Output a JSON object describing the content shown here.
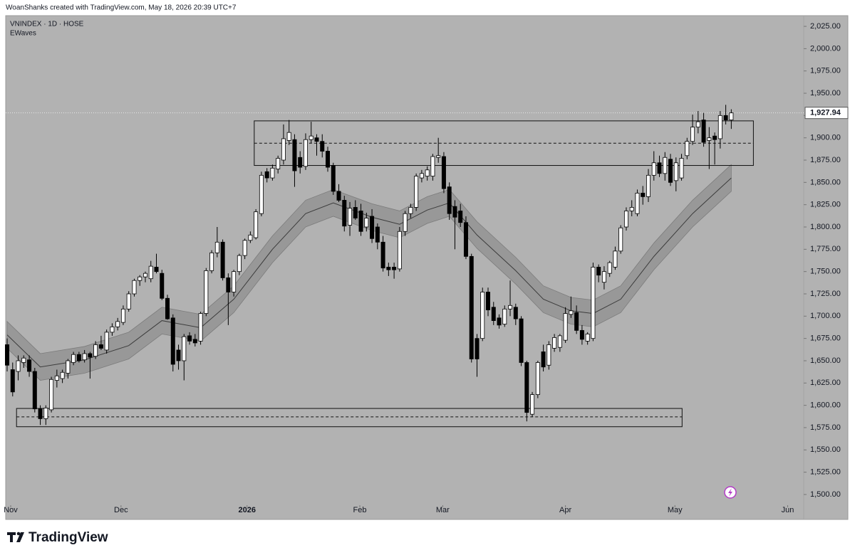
{
  "header": {
    "credit": "WoanShanks created with TradingView.com, May 18, 2026 20:39 UTC+7"
  },
  "chart_data": {
    "type": "candlestick",
    "title": "VNINDEX · 1D · HOSE",
    "indicator": "EWaves",
    "up_color": "#ffffff",
    "down_color": "#000000",
    "ylim": [
      1488,
      2037
    ],
    "yticks": [
      {
        "value": 1500,
        "label": "1,500.00"
      },
      {
        "value": 1525,
        "label": "1,525.00"
      },
      {
        "value": 1550,
        "label": "1,550.00"
      },
      {
        "value": 1575,
        "label": "1,575.00"
      },
      {
        "value": 1600,
        "label": "1,600.00"
      },
      {
        "value": 1625,
        "label": "1,625.00"
      },
      {
        "value": 1650,
        "label": "1,650.00"
      },
      {
        "value": 1675,
        "label": "1,675.00"
      },
      {
        "value": 1700,
        "label": "1,700.00"
      },
      {
        "value": 1725,
        "label": "1,725.00"
      },
      {
        "value": 1750,
        "label": "1,750.00"
      },
      {
        "value": 1775,
        "label": "1,775.00"
      },
      {
        "value": 1800,
        "label": "1,800.00"
      },
      {
        "value": 1825,
        "label": "1,825.00"
      },
      {
        "value": 1850,
        "label": "1,850.00"
      },
      {
        "value": 1875,
        "label": "1,875.00"
      },
      {
        "value": 1900,
        "label": "1,900.00"
      },
      {
        "value": 1925,
        "label": "1,925.00"
      },
      {
        "value": 1950,
        "label": "1,950.00"
      },
      {
        "value": 1975,
        "label": "1,975.00"
      },
      {
        "value": 2000,
        "label": "2,000.00"
      },
      {
        "value": 2025,
        "label": "2,025.00"
      }
    ],
    "xlim": [
      -0.26,
      144.1
    ],
    "xticks": [
      {
        "value": 0.64,
        "label": "Nov"
      },
      {
        "value": 20.6,
        "label": "Dec"
      },
      {
        "value": 43.4,
        "label": "2026"
      },
      {
        "value": 63.8,
        "label": "Feb"
      },
      {
        "value": 78.8,
        "label": "Mar"
      },
      {
        "value": 101,
        "label": "Apr"
      },
      {
        "value": 120.8,
        "label": "May"
      },
      {
        "value": 141.2,
        "label": "Jun"
      }
    ],
    "last_price": {
      "value": 1927.94,
      "label": "1,927.94"
    },
    "ohlc": [
      [
        1668,
        1675,
        1638,
        1645
      ],
      [
        1640,
        1648,
        1610,
        1615
      ],
      [
        1638,
        1656,
        1628,
        1650
      ],
      [
        1648,
        1656,
        1642,
        1653
      ],
      [
        1651,
        1656,
        1632,
        1638
      ],
      [
        1638,
        1642,
        1592,
        1596
      ],
      [
        1596,
        1600,
        1578,
        1585
      ],
      [
        1585,
        1600,
        1578,
        1597
      ],
      [
        1595,
        1632,
        1592,
        1629
      ],
      [
        1628,
        1640,
        1620,
        1633
      ],
      [
        1630,
        1640,
        1625,
        1637
      ],
      [
        1636,
        1652,
        1630,
        1650
      ],
      [
        1648,
        1660,
        1645,
        1657
      ],
      [
        1657,
        1660,
        1648,
        1650
      ],
      [
        1651,
        1662,
        1648,
        1658
      ],
      [
        1658,
        1660,
        1630,
        1654
      ],
      [
        1655,
        1672,
        1652,
        1668
      ],
      [
        1668,
        1678,
        1662,
        1664
      ],
      [
        1662,
        1685,
        1658,
        1682
      ],
      [
        1682,
        1692,
        1678,
        1688
      ],
      [
        1688,
        1698,
        1684,
        1694
      ],
      [
        1693,
        1712,
        1690,
        1708
      ],
      [
        1708,
        1728,
        1705,
        1725
      ],
      [
        1725,
        1742,
        1722,
        1740
      ],
      [
        1740,
        1746,
        1734,
        1744
      ],
      [
        1744,
        1750,
        1738,
        1748
      ],
      [
        1742,
        1762,
        1738,
        1756
      ],
      [
        1755,
        1770,
        1748,
        1750
      ],
      [
        1748,
        1752,
        1718,
        1720
      ],
      [
        1720,
        1724,
        1696,
        1697
      ],
      [
        1698,
        1702,
        1638,
        1646
      ],
      [
        1662,
        1668,
        1640,
        1650
      ],
      [
        1650,
        1680,
        1628,
        1677
      ],
      [
        1678,
        1682,
        1668,
        1672
      ],
      [
        1674,
        1680,
        1666,
        1670
      ],
      [
        1672,
        1705,
        1668,
        1703
      ],
      [
        1703,
        1754,
        1700,
        1751
      ],
      [
        1751,
        1774,
        1748,
        1771
      ],
      [
        1771,
        1800,
        1766,
        1783
      ],
      [
        1783,
        1786,
        1740,
        1743
      ],
      [
        1743,
        1748,
        1690,
        1727
      ],
      [
        1727,
        1752,
        1722,
        1750
      ],
      [
        1750,
        1770,
        1746,
        1768
      ],
      [
        1768,
        1787,
        1764,
        1785
      ],
      [
        1785,
        1795,
        1782,
        1791
      ],
      [
        1788,
        1820,
        1786,
        1817
      ],
      [
        1815,
        1862,
        1812,
        1858
      ],
      [
        1862,
        1866,
        1850,
        1855
      ],
      [
        1855,
        1870,
        1852,
        1866
      ],
      [
        1865,
        1880,
        1860,
        1877
      ],
      [
        1875,
        1915,
        1870,
        1899
      ],
      [
        1897,
        1920,
        1892,
        1906
      ],
      [
        1898,
        1904,
        1845,
        1863
      ],
      [
        1878,
        1885,
        1860,
        1867
      ],
      [
        1868,
        1905,
        1864,
        1898
      ],
      [
        1898,
        1918,
        1894,
        1902
      ],
      [
        1900,
        1904,
        1880,
        1896
      ],
      [
        1896,
        1904,
        1878,
        1885
      ],
      [
        1885,
        1890,
        1862,
        1867
      ],
      [
        1869,
        1872,
        1836,
        1840
      ],
      [
        1840,
        1848,
        1828,
        1830
      ],
      [
        1830,
        1835,
        1795,
        1801
      ],
      [
        1802,
        1828,
        1790,
        1821
      ],
      [
        1822,
        1830,
        1808,
        1810
      ],
      [
        1818,
        1826,
        1790,
        1795
      ],
      [
        1800,
        1816,
        1795,
        1810
      ],
      [
        1812,
        1820,
        1782,
        1787
      ],
      [
        1800,
        1804,
        1775,
        1783
      ],
      [
        1783,
        1790,
        1750,
        1754
      ],
      [
        1755,
        1760,
        1745,
        1752
      ],
      [
        1755,
        1760,
        1742,
        1752
      ],
      [
        1753,
        1800,
        1750,
        1795
      ],
      [
        1795,
        1818,
        1790,
        1815
      ],
      [
        1815,
        1826,
        1810,
        1822
      ],
      [
        1822,
        1860,
        1818,
        1857
      ],
      [
        1855,
        1864,
        1850,
        1860
      ],
      [
        1857,
        1868,
        1852,
        1864
      ],
      [
        1857,
        1882,
        1852,
        1879
      ],
      [
        1878,
        1900,
        1872,
        1880
      ],
      [
        1879,
        1884,
        1838,
        1843
      ],
      [
        1845,
        1850,
        1808,
        1815
      ],
      [
        1823,
        1830,
        1775,
        1811
      ],
      [
        1818,
        1826,
        1800,
        1805
      ],
      [
        1805,
        1812,
        1764,
        1767
      ],
      [
        1767,
        1770,
        1648,
        1652
      ],
      [
        1675,
        1680,
        1632,
        1652
      ],
      [
        1675,
        1732,
        1672,
        1727
      ],
      [
        1727,
        1732,
        1700,
        1707
      ],
      [
        1710,
        1716,
        1690,
        1695
      ],
      [
        1698,
        1702,
        1686,
        1690
      ],
      [
        1691,
        1712,
        1688,
        1708
      ],
      [
        1708,
        1740,
        1700,
        1712
      ],
      [
        1710,
        1714,
        1690,
        1697
      ],
      [
        1697,
        1700,
        1644,
        1648
      ],
      [
        1648,
        1650,
        1582,
        1592
      ],
      [
        1590,
        1615,
        1587,
        1612
      ],
      [
        1612,
        1650,
        1608,
        1648
      ],
      [
        1660,
        1668,
        1638,
        1643
      ],
      [
        1645,
        1672,
        1640,
        1668
      ],
      [
        1664,
        1680,
        1660,
        1676
      ],
      [
        1665,
        1680,
        1660,
        1678
      ],
      [
        1673,
        1710,
        1670,
        1703
      ],
      [
        1702,
        1722,
        1698,
        1706
      ],
      [
        1704,
        1712,
        1680,
        1684
      ],
      [
        1684,
        1690,
        1668,
        1674
      ],
      [
        1672,
        1682,
        1668,
        1680
      ],
      [
        1675,
        1760,
        1672,
        1755
      ],
      [
        1755,
        1758,
        1738,
        1746
      ],
      [
        1738,
        1756,
        1730,
        1750
      ],
      [
        1748,
        1762,
        1744,
        1760
      ],
      [
        1755,
        1778,
        1752,
        1773
      ],
      [
        1773,
        1802,
        1770,
        1799
      ],
      [
        1800,
        1822,
        1796,
        1818
      ],
      [
        1818,
        1830,
        1812,
        1822
      ],
      [
        1815,
        1842,
        1812,
        1838
      ],
      [
        1838,
        1846,
        1825,
        1834
      ],
      [
        1834,
        1865,
        1828,
        1858
      ],
      [
        1858,
        1885,
        1852,
        1872
      ],
      [
        1872,
        1880,
        1856,
        1860
      ],
      [
        1860,
        1884,
        1852,
        1878
      ],
      [
        1876,
        1882,
        1846,
        1850
      ],
      [
        1852,
        1878,
        1840,
        1872
      ],
      [
        1855,
        1882,
        1852,
        1877
      ],
      [
        1880,
        1900,
        1876,
        1896
      ],
      [
        1896,
        1926,
        1892,
        1912
      ],
      [
        1912,
        1930,
        1905,
        1918
      ],
      [
        1920,
        1928,
        1890,
        1895
      ],
      [
        1897,
        1912,
        1865,
        1900
      ],
      [
        1902,
        1906,
        1870,
        1898
      ],
      [
        1899,
        1930,
        1888,
        1925
      ],
      [
        1925,
        1937,
        1915,
        1920
      ],
      [
        1920,
        1932,
        1910,
        1927.94
      ]
    ],
    "ewaves": {
      "x": [
        0,
        6,
        14,
        22,
        28,
        35,
        41,
        48,
        54,
        59,
        66,
        71,
        76,
        80,
        85,
        92,
        97,
        102,
        106,
        111,
        117,
        124,
        131
      ],
      "mid": [
        1679,
        1643,
        1651,
        1667,
        1695,
        1687,
        1719,
        1775,
        1815,
        1827,
        1811,
        1803,
        1819,
        1827,
        1791,
        1751,
        1719,
        1706,
        1703,
        1719,
        1767,
        1815,
        1855
      ],
      "upper": [
        1694,
        1658,
        1666,
        1682,
        1710,
        1702,
        1734,
        1790,
        1830,
        1842,
        1826,
        1818,
        1834,
        1842,
        1806,
        1766,
        1734,
        1721,
        1718,
        1734,
        1782,
        1830,
        1870
      ],
      "lower": [
        1664,
        1628,
        1636,
        1652,
        1680,
        1672,
        1704,
        1760,
        1800,
        1812,
        1796,
        1788,
        1804,
        1812,
        1776,
        1736,
        1704,
        1691,
        1688,
        1704,
        1752,
        1800,
        1840
      ],
      "color": "#3c3c3c",
      "band_color": "#8f8f8f"
    },
    "zones": [
      {
        "x": [
          44.7,
          135
        ],
        "top": 1919,
        "bottom": 1869,
        "mid": 1894
      },
      {
        "x": [
          1.7,
          122.1
        ],
        "top": 1596.5,
        "bottom": 1576,
        "mid": 1587
      }
    ]
  },
  "footer": {
    "logo_text": "TradingView"
  }
}
